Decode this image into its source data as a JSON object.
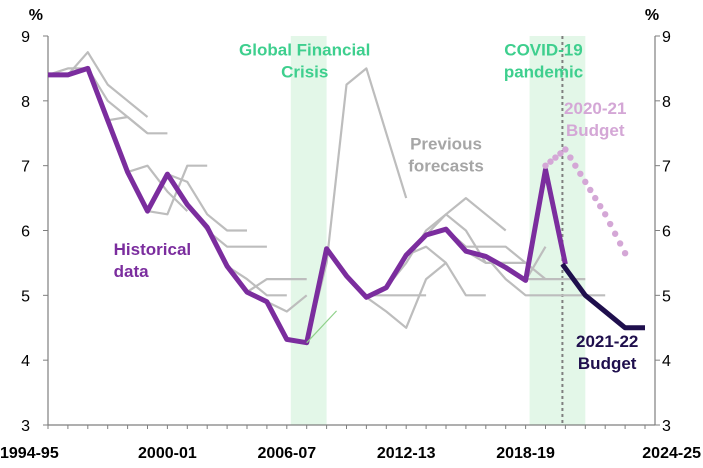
{
  "chart_data": {
    "type": "line",
    "title": "",
    "xlabel": "",
    "ylabel": "",
    "unit_left": "%",
    "unit_right": "%",
    "ylim": [
      3,
      9
    ],
    "yticks": [
      3,
      4,
      5,
      6,
      7,
      8,
      9
    ],
    "x_years": [
      1995,
      1996,
      1997,
      1998,
      1999,
      2000,
      2001,
      2002,
      2003,
      2004,
      2005,
      2006,
      2007,
      2008,
      2009,
      2010,
      2011,
      2012,
      2013,
      2014,
      2015,
      2016,
      2017,
      2018,
      2019,
      2020,
      2021,
      2022,
      2023,
      2024,
      2025
    ],
    "x_tick_labels": [
      {
        "year": 1995,
        "label": "1994-95"
      },
      {
        "year": 2001,
        "label": "2000-01"
      },
      {
        "year": 2007,
        "label": "2006-07"
      },
      {
        "year": 2013,
        "label": "2012-13"
      },
      {
        "year": 2019,
        "label": "2018-19"
      },
      {
        "year": 2025,
        "label": "2024-25"
      }
    ],
    "grid": false,
    "shaded_periods": [
      {
        "label": "Global Financial Crisis",
        "from": 2007.2,
        "to": 2009.0
      },
      {
        "label": "COVID-19 pandemic",
        "from": 2019.2,
        "to": 2022.0
      }
    ],
    "shade_color": "#e3f7e8",
    "budget_line_year": 2020.85,
    "series": [
      {
        "name": "Historical data",
        "style": "historical",
        "color": "#7b2d9e",
        "points": [
          [
            1995,
            8.4
          ],
          [
            1996,
            8.4
          ],
          [
            1997,
            8.5
          ],
          [
            1998,
            7.7
          ],
          [
            1999,
            6.9
          ],
          [
            2000,
            6.3
          ],
          [
            2001,
            6.87
          ],
          [
            2002,
            6.4
          ],
          [
            2003,
            6.05
          ],
          [
            2004,
            5.45
          ],
          [
            2005,
            5.05
          ],
          [
            2006,
            4.9
          ],
          [
            2007,
            4.32
          ],
          [
            2008,
            4.27
          ],
          [
            2009,
            5.72
          ],
          [
            2010,
            5.3
          ],
          [
            2011,
            4.97
          ],
          [
            2012,
            5.12
          ],
          [
            2013,
            5.62
          ],
          [
            2014,
            5.93
          ],
          [
            2015,
            6.02
          ],
          [
            2016,
            5.68
          ],
          [
            2017,
            5.6
          ],
          [
            2018,
            5.43
          ],
          [
            2019,
            5.23
          ],
          [
            2020,
            6.94
          ],
          [
            2021,
            5.48
          ]
        ]
      },
      {
        "name": "2021-22 Budget",
        "style": "budget2122",
        "color": "#1f0f4d",
        "points": [
          [
            2020.85,
            5.48
          ],
          [
            2022,
            5.0
          ],
          [
            2023,
            4.75
          ],
          [
            2024,
            4.5
          ],
          [
            2025,
            4.5
          ]
        ]
      },
      {
        "name": "2020-21 Budget",
        "style": "budget2021",
        "color": "#d4a7d6",
        "points": [
          [
            2020,
            7.0
          ],
          [
            2021,
            7.25
          ],
          [
            2022,
            6.75
          ],
          [
            2023,
            6.25
          ],
          [
            2024,
            5.65
          ]
        ]
      },
      {
        "name": "",
        "style": "previous",
        "color": "#bdbdbd",
        "points": [
          [
            1995,
            8.4
          ],
          [
            1996,
            8.5
          ],
          [
            1997,
            8.5
          ]
        ]
      },
      {
        "name": "",
        "style": "previous",
        "color": "#bdbdbd",
        "points": [
          [
            1996,
            8.4
          ],
          [
            1997,
            8.75
          ],
          [
            1998,
            8.25
          ],
          [
            1999,
            8.0
          ],
          [
            2000,
            7.75
          ]
        ]
      },
      {
        "name": "",
        "style": "previous",
        "color": "#bdbdbd",
        "points": [
          [
            1997,
            8.5
          ],
          [
            1998,
            8.0
          ],
          [
            1999,
            7.75
          ],
          [
            2000,
            7.5
          ],
          [
            2001,
            7.5
          ]
        ]
      },
      {
        "name": "",
        "style": "previous",
        "color": "#bdbdbd",
        "points": [
          [
            1998,
            7.7
          ],
          [
            1999,
            7.75
          ],
          [
            2000,
            7.5
          ]
        ]
      },
      {
        "name": "",
        "style": "previous",
        "color": "#bdbdbd",
        "points": [
          [
            1999,
            6.9
          ],
          [
            2000,
            7.0
          ],
          [
            2001,
            6.6
          ],
          [
            2002,
            6.3
          ]
        ]
      },
      {
        "name": "",
        "style": "previous",
        "color": "#bdbdbd",
        "points": [
          [
            2000,
            6.3
          ],
          [
            2001,
            6.25
          ],
          [
            2002,
            7.0
          ],
          [
            2003,
            7.0
          ]
        ]
      },
      {
        "name": "",
        "style": "previous",
        "color": "#bdbdbd",
        "points": [
          [
            2001,
            6.87
          ],
          [
            2002,
            6.75
          ],
          [
            2003,
            6.25
          ],
          [
            2004,
            6.0
          ],
          [
            2005,
            6.0
          ]
        ]
      },
      {
        "name": "",
        "style": "previous",
        "color": "#bdbdbd",
        "points": [
          [
            2002,
            6.4
          ],
          [
            2003,
            6.0
          ],
          [
            2004,
            5.75
          ],
          [
            2005,
            5.75
          ],
          [
            2006,
            5.75
          ]
        ]
      },
      {
        "name": "",
        "style": "previous",
        "color": "#bdbdbd",
        "points": [
          [
            2004,
            5.45
          ],
          [
            2005,
            5.25
          ],
          [
            2006,
            5.0
          ],
          [
            2007,
            5.0
          ]
        ]
      },
      {
        "name": "",
        "style": "previous",
        "color": "#bdbdbd",
        "points": [
          [
            2005,
            5.05
          ],
          [
            2006,
            5.25
          ],
          [
            2007,
            5.25
          ],
          [
            2008,
            5.25
          ]
        ]
      },
      {
        "name": "",
        "style": "previous",
        "color": "#bdbdbd",
        "points": [
          [
            2006,
            4.9
          ],
          [
            2007,
            4.75
          ],
          [
            2008,
            5.0
          ]
        ]
      },
      {
        "name": "",
        "style": "previous",
        "color": "#bdbdbd",
        "points": [
          [
            2008,
            4.27
          ],
          [
            2009,
            5.5
          ],
          [
            2010,
            8.25
          ],
          [
            2011,
            8.5
          ],
          [
            2012,
            7.5
          ],
          [
            2013,
            6.5
          ]
        ]
      },
      {
        "name": "",
        "style": "previous",
        "color": "#bdbdbd",
        "points": [
          [
            2010,
            5.3
          ],
          [
            2011,
            5.0
          ],
          [
            2012,
            5.0
          ],
          [
            2013,
            5.0
          ],
          [
            2014,
            5.0
          ]
        ]
      },
      {
        "name": "",
        "style": "previous",
        "color": "#bdbdbd",
        "points": [
          [
            2011,
            4.97
          ],
          [
            2012,
            4.75
          ],
          [
            2013,
            4.5
          ],
          [
            2014,
            5.25
          ],
          [
            2015,
            5.5
          ]
        ]
      },
      {
        "name": "",
        "style": "previous",
        "color": "#bdbdbd",
        "points": [
          [
            2012,
            5.12
          ],
          [
            2013,
            5.5
          ],
          [
            2014,
            6.0
          ],
          [
            2015,
            6.25
          ],
          [
            2016,
            6.0
          ],
          [
            2017,
            5.5
          ]
        ]
      },
      {
        "name": "",
        "style": "previous",
        "color": "#bdbdbd",
        "points": [
          [
            2013,
            5.62
          ],
          [
            2014,
            5.75
          ],
          [
            2015,
            5.5
          ],
          [
            2016,
            5.0
          ],
          [
            2017,
            5.0
          ]
        ]
      },
      {
        "name": "",
        "style": "previous",
        "color": "#bdbdbd",
        "points": [
          [
            2014,
            5.93
          ],
          [
            2015,
            6.25
          ],
          [
            2016,
            6.5
          ],
          [
            2017,
            6.25
          ],
          [
            2018,
            6.0
          ]
        ]
      },
      {
        "name": "",
        "style": "previous",
        "color": "#bdbdbd",
        "points": [
          [
            2015,
            6.02
          ],
          [
            2016,
            5.75
          ],
          [
            2017,
            5.75
          ],
          [
            2018,
            5.75
          ],
          [
            2019,
            5.5
          ]
        ]
      },
      {
        "name": "",
        "style": "previous",
        "color": "#bdbdbd",
        "points": [
          [
            2016,
            5.68
          ],
          [
            2017,
            5.5
          ],
          [
            2018,
            5.5
          ],
          [
            2019,
            5.5
          ],
          [
            2020,
            5.25
          ]
        ]
      },
      {
        "name": "",
        "style": "previous",
        "color": "#bdbdbd",
        "points": [
          [
            2017,
            5.6
          ],
          [
            2018,
            5.25
          ],
          [
            2019,
            5.0
          ],
          [
            2020,
            5.0
          ],
          [
            2021,
            5.0
          ],
          [
            2022,
            5.0
          ],
          [
            2023,
            5.0
          ]
        ]
      },
      {
        "name": "",
        "style": "previous",
        "color": "#bdbdbd",
        "points": [
          [
            2018,
            5.43
          ],
          [
            2019,
            5.25
          ],
          [
            2020,
            5.25
          ],
          [
            2021,
            5.25
          ],
          [
            2022,
            5.25
          ]
        ]
      },
      {
        "name": "",
        "style": "previous",
        "color": "#bdbdbd",
        "points": [
          [
            2019,
            5.23
          ],
          [
            2020,
            5.75
          ]
        ]
      }
    ],
    "stray_mark": {
      "color": "#8fd18a",
      "points": [
        [
          2008,
          4.27
        ],
        [
          2009.5,
          4.76
        ]
      ]
    },
    "annotations": [
      {
        "text": [
          "Global Financial",
          "Crisis"
        ],
        "color": "#3ecf8e",
        "x": 2007.9,
        "y": 8.7,
        "anchor": "middle"
      },
      {
        "text": [
          "COVID-19",
          "pandemic"
        ],
        "color": "#3ecf8e",
        "x": 2019.9,
        "y": 8.7,
        "anchor": "middle"
      },
      {
        "text": [
          "Previous",
          "forecasts"
        ],
        "color": "#a6a6a6",
        "x": 2015.0,
        "y": 7.25,
        "anchor": "middle"
      },
      {
        "text": [
          "2020-21",
          "Budget"
        ],
        "color": "#d4a7d6",
        "x": 2022.5,
        "y": 7.8,
        "anchor": "middle"
      },
      {
        "text": [
          "Historical",
          "data"
        ],
        "color": "#7b2d9e",
        "x": 1998.3,
        "y": 5.62,
        "anchor": "start"
      },
      {
        "text": [
          "2021-22",
          "Budget"
        ],
        "color": "#1f0f4d",
        "x": 2023.1,
        "y": 4.2,
        "anchor": "middle"
      }
    ]
  }
}
